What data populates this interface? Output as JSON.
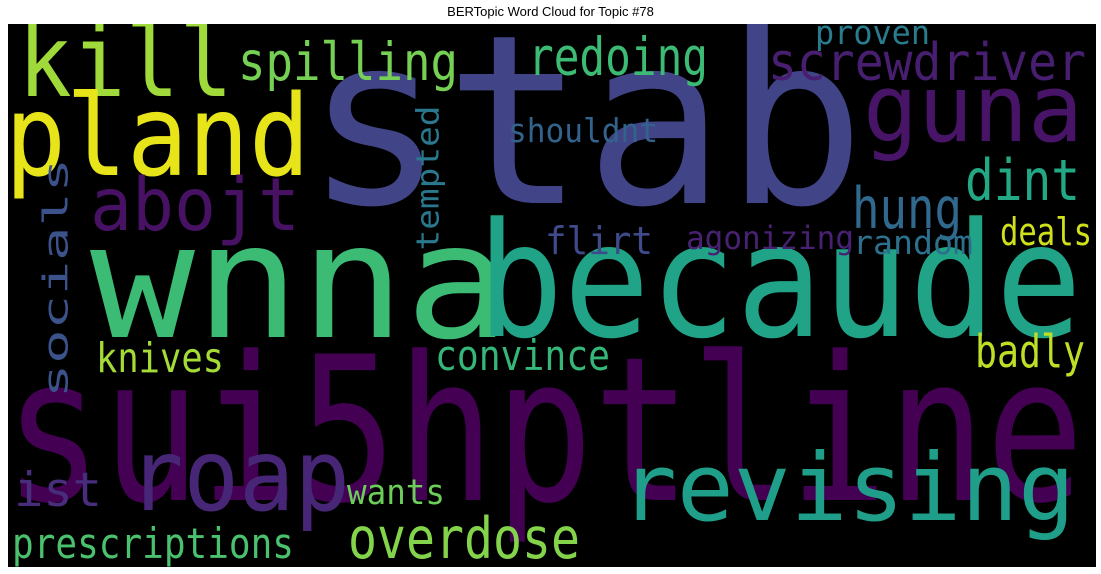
{
  "figure": {
    "title": "BERTopic Word Cloud for Topic #78"
  },
  "chart_data": {
    "type": "wordcloud",
    "title": "BERTopic Word Cloud for Topic #78",
    "background_color": "#000000",
    "colormap": "viridis",
    "words": [
      {
        "text": "stab",
        "color": "#414487"
      },
      {
        "text": "wnna",
        "color": "#3cbb75"
      },
      {
        "text": "becaude",
        "color": "#20a386"
      },
      {
        "text": "sui5hptline",
        "color": "#440154"
      },
      {
        "text": "kill",
        "color": "#9fda3a"
      },
      {
        "text": "pland",
        "color": "#e7e419"
      },
      {
        "text": "guna",
        "color": "#481467"
      },
      {
        "text": "roap",
        "color": "#482677"
      },
      {
        "text": "revising",
        "color": "#1f9e89"
      },
      {
        "text": "abojt",
        "color": "#471164"
      },
      {
        "text": "spilling",
        "color": "#75d054"
      },
      {
        "text": "redoing",
        "color": "#3cbb75"
      },
      {
        "text": "screwdriver",
        "color": "#481f70"
      },
      {
        "text": "dint",
        "color": "#22a884"
      },
      {
        "text": "hung",
        "color": "#31688e"
      },
      {
        "text": "proven",
        "color": "#287c8e"
      },
      {
        "text": "shouldnt",
        "color": "#33638d"
      },
      {
        "text": "tempted",
        "color": "#2a788e"
      },
      {
        "text": "socials",
        "color": "#3b528b"
      },
      {
        "text": "flirt",
        "color": "#3e4a89"
      },
      {
        "text": "agonizing",
        "color": "#482173"
      },
      {
        "text": "random",
        "color": "#2d708e"
      },
      {
        "text": "deals",
        "color": "#d0e11c"
      },
      {
        "text": "badly",
        "color": "#bddf26"
      },
      {
        "text": "convince",
        "color": "#35b779"
      },
      {
        "text": "knives",
        "color": "#a5db36"
      },
      {
        "text": "ist",
        "color": "#472d7b"
      },
      {
        "text": "wants",
        "color": "#6ccd5a"
      },
      {
        "text": "overdose",
        "color": "#84d44b"
      },
      {
        "text": "prescriptions",
        "color": "#4ac16d"
      }
    ]
  }
}
